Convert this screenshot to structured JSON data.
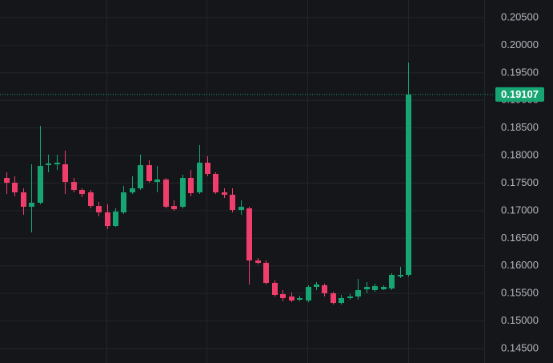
{
  "chart_data": {
    "type": "candlestick",
    "up_color": "#17a673",
    "down_color": "#ef3e6c",
    "grid": true,
    "ylim": [
      0.14238,
      0.2082
    ],
    "yticks": [
      {
        "value": 0.145,
        "label": "0.14500"
      },
      {
        "value": 0.15,
        "label": "0.15000"
      },
      {
        "value": 0.155,
        "label": "0.15500"
      },
      {
        "value": 0.16,
        "label": "0.16000"
      },
      {
        "value": 0.165,
        "label": "0.16500"
      },
      {
        "value": 0.17,
        "label": "0.17000"
      },
      {
        "value": 0.175,
        "label": "0.17500"
      },
      {
        "value": 0.18,
        "label": "0.18000"
      },
      {
        "value": 0.185,
        "label": "0.18500"
      },
      {
        "value": 0.19,
        "label": "0.19000"
      },
      {
        "value": 0.195,
        "label": "0.19500"
      },
      {
        "value": 0.2,
        "label": "0.20000"
      },
      {
        "value": 0.205,
        "label": "0.20500"
      }
    ],
    "open": [
      0.17594,
      0.17507,
      0.17332,
      0.17071,
      0.17144,
      0.17826,
      0.17841,
      0.17841,
      0.17521,
      0.17376,
      0.17332,
      0.17085,
      0.16969,
      0.16722,
      0.16969,
      0.17332,
      0.17405,
      0.17826,
      0.17521,
      0.17565,
      0.17085,
      0.17071,
      0.17594,
      0.17332,
      0.1787,
      0.17667,
      0.17332,
      0.17289,
      0.17013,
      0.17042,
      0.16097,
      0.16054,
      0.15691,
      0.15487,
      0.15444,
      0.15385,
      0.15371,
      0.15618,
      0.15647,
      0.15502,
      0.15327,
      0.15415,
      0.15444,
      0.15574,
      0.1556,
      0.15574,
      0.15589,
      0.15807,
      0.15836
    ],
    "high": [
      0.17696,
      0.17623,
      0.17405,
      0.17841,
      0.18538,
      0.18015,
      0.18015,
      0.18088,
      0.17594,
      0.17405,
      0.17376,
      0.17158,
      0.17115,
      0.17042,
      0.17449,
      0.17623,
      0.18015,
      0.17914,
      0.17812,
      0.17594,
      0.17187,
      0.17652,
      0.17739,
      0.1819,
      0.17986,
      0.17696,
      0.17405,
      0.17405,
      0.17187,
      0.17071,
      0.16141,
      0.16097,
      0.15734,
      0.1556,
      0.15516,
      0.15458,
      0.15647,
      0.15705,
      0.15676,
      0.15531,
      0.15473,
      0.15487,
      0.15763,
      0.15705,
      0.15676,
      0.15647,
      0.15865,
      0.15981,
      0.19686
    ],
    "low": [
      0.17303,
      0.1726,
      0.16926,
      0.16606,
      0.17115,
      0.17696,
      0.17739,
      0.17303,
      0.17332,
      0.17245,
      0.17042,
      0.16897,
      0.16664,
      0.16708,
      0.1694,
      0.17303,
      0.17376,
      0.17507,
      0.17332,
      0.17042,
      0.16998,
      0.17042,
      0.1726,
      0.17303,
      0.17623,
      0.17303,
      0.17231,
      0.16969,
      0.16926,
      0.15662,
      0.16025,
      0.15662,
      0.15444,
      0.15356,
      0.15342,
      0.15356,
      0.15342,
      0.1556,
      0.15444,
      0.15298,
      0.15298,
      0.15385,
      0.15385,
      0.15502,
      0.15531,
      0.1556,
      0.1556,
      0.15778,
      0.15807
    ],
    "close": [
      0.17507,
      0.17332,
      0.17071,
      0.17144,
      0.17812,
      0.17856,
      0.1787,
      0.17521,
      0.17376,
      0.17303,
      0.17085,
      0.16969,
      0.16722,
      0.16984,
      0.17332,
      0.17405,
      0.17826,
      0.17536,
      0.17565,
      0.17071,
      0.17027,
      0.17594,
      0.17318,
      0.1787,
      0.17667,
      0.17332,
      0.17289,
      0.17013,
      0.17071,
      0.16097,
      0.16054,
      0.15691,
      0.15473,
      0.15415,
      0.15371,
      0.15415,
      0.15618,
      0.15662,
      0.15502,
      0.15327,
      0.15415,
      0.15444,
      0.1556,
      0.15618,
      0.15632,
      0.15618,
      0.15836,
      0.15836,
      0.19107
    ]
  }
}
